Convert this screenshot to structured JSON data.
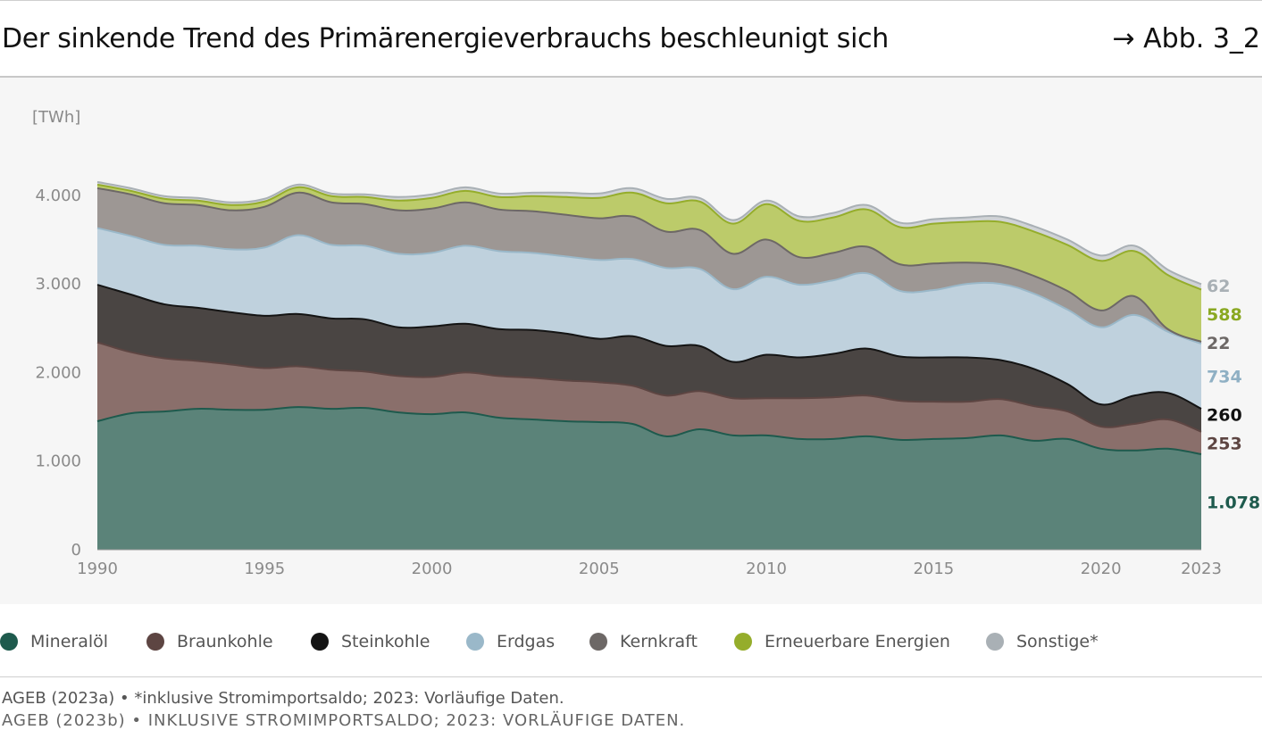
{
  "header": {
    "title": "Der sinkende Trend des Primärenergieverbrauchs beschleunigt sich",
    "figure_ref": "→ Abb. 3_2"
  },
  "footer": {
    "source": "AGEB (2023a) • *inklusive Stromimportsaldo; 2023: Vorläufige Daten.",
    "cut_line": "AGEB (2023b) • INKLUSIVE STROMIMPORTSALDO; 2023: VORLÄUFIGE DATEN."
  },
  "chart_data": {
    "type": "area",
    "stacked": true,
    "unit_label": "[TWh]",
    "ylim": [
      0,
      4200
    ],
    "yticks": [
      0,
      1000,
      2000,
      3000,
      4000
    ],
    "ytick_labels": [
      "0",
      "1.000",
      "2.000",
      "3.000",
      "4.000"
    ],
    "xticks": [
      1990,
      1995,
      2000,
      2005,
      2010,
      2015,
      2020,
      2023
    ],
    "xtick_labels": [
      "1990",
      "1995",
      "2000",
      "2005",
      "2010",
      "2015",
      "2020",
      "2023"
    ],
    "grid": false,
    "legend_position": "bottom",
    "x": [
      1990,
      1991,
      1992,
      1993,
      1994,
      1995,
      1996,
      1997,
      1998,
      1999,
      2000,
      2001,
      2002,
      2003,
      2004,
      2005,
      2006,
      2007,
      2008,
      2009,
      2010,
      2011,
      2012,
      2013,
      2014,
      2015,
      2016,
      2017,
      2018,
      2019,
      2020,
      2021,
      2022,
      2023
    ],
    "series": [
      {
        "name": "Mineralöl",
        "color": "#5b8379",
        "line_color": "#1e5a4d",
        "label_color": "#1e5a4d",
        "values": [
          1450,
          1540,
          1560,
          1590,
          1580,
          1580,
          1610,
          1590,
          1600,
          1550,
          1530,
          1550,
          1490,
          1470,
          1450,
          1440,
          1420,
          1280,
          1360,
          1290,
          1290,
          1250,
          1250,
          1280,
          1240,
          1250,
          1260,
          1290,
          1230,
          1250,
          1140,
          1120,
          1140,
          1078
        ]
      },
      {
        "name": "Braunkohle",
        "color": "#8a6f6b",
        "line_color": "#5d4542",
        "label_color": "#5d4542",
        "values": [
          890,
          690,
          600,
          540,
          510,
          470,
          460,
          440,
          410,
          410,
          420,
          450,
          470,
          470,
          460,
          450,
          430,
          460,
          430,
          420,
          420,
          460,
          470,
          460,
          440,
          420,
          410,
          410,
          390,
          310,
          250,
          300,
          330,
          253
        ]
      },
      {
        "name": "Steinkohle",
        "color": "#4a4543",
        "line_color": "#141414",
        "label_color": "#111111",
        "values": [
          650,
          650,
          610,
          600,
          590,
          590,
          590,
          580,
          590,
          550,
          570,
          550,
          530,
          540,
          530,
          490,
          560,
          560,
          510,
          410,
          490,
          460,
          490,
          530,
          500,
          500,
          500,
          440,
          420,
          310,
          250,
          320,
          300,
          260
        ]
      },
      {
        "name": "Erdgas",
        "color": "#bfd1dd",
        "line_color": "#9ab8c9",
        "label_color": "#8fb0c4",
        "values": [
          640,
          660,
          670,
          700,
          710,
          770,
          890,
          830,
          830,
          830,
          830,
          880,
          880,
          870,
          870,
          890,
          870,
          880,
          870,
          820,
          880,
          820,
          830,
          850,
          740,
          760,
          830,
          860,
          850,
          840,
          870,
          910,
          690,
          734
        ]
      },
      {
        "name": "Kernkraft",
        "color": "#9d9794",
        "line_color": "#6d6866",
        "label_color": "#6d6866",
        "values": [
          450,
          470,
          470,
          460,
          440,
          460,
          480,
          480,
          470,
          490,
          500,
          490,
          470,
          470,
          470,
          470,
          480,
          410,
          440,
          400,
          420,
          310,
          310,
          300,
          300,
          300,
          240,
          210,
          200,
          210,
          190,
          210,
          30,
          22
        ]
      },
      {
        "name": "Erneuerbare Energien",
        "color": "#bccb6a",
        "line_color": "#95ad2b",
        "label_color": "#8aa822",
        "values": [
          40,
          40,
          50,
          50,
          60,
          60,
          60,
          70,
          80,
          110,
          120,
          130,
          140,
          170,
          200,
          230,
          270,
          320,
          320,
          340,
          400,
          410,
          400,
          420,
          420,
          450,
          460,
          490,
          500,
          520,
          560,
          510,
          610,
          588
        ]
      },
      {
        "name": "Sonstige*",
        "color": "#d0d3d6",
        "line_color": "#a9b0b5",
        "label_color": "#a9b0b5",
        "values": [
          30,
          30,
          30,
          30,
          30,
          30,
          30,
          30,
          30,
          40,
          40,
          40,
          40,
          40,
          50,
          50,
          50,
          50,
          40,
          40,
          40,
          50,
          50,
          50,
          50,
          50,
          50,
          60,
          60,
          60,
          60,
          60,
          60,
          62
        ]
      }
    ],
    "end_labels": [
      "1.078",
      "253",
      "260",
      "734",
      "22",
      "588",
      "62"
    ]
  }
}
